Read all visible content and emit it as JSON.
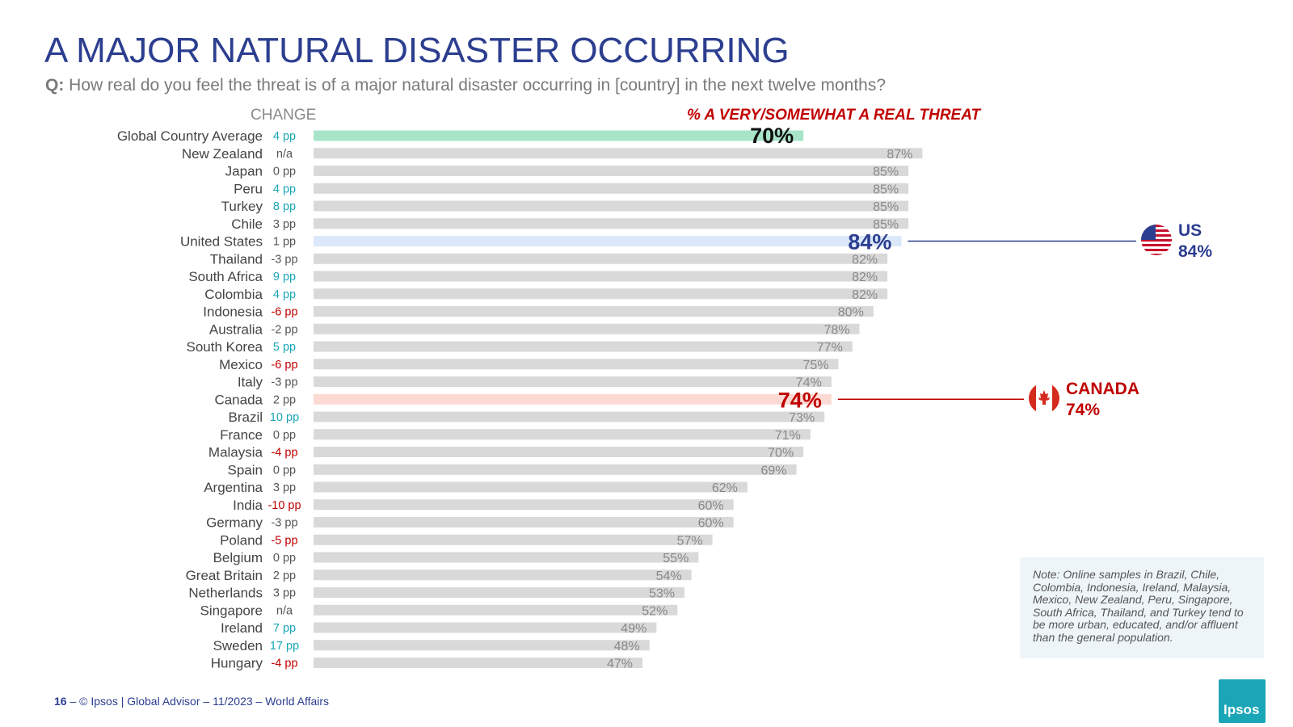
{
  "title": "A MAJOR NATURAL DISASTER OCCURRING",
  "question_prefix": "Q:",
  "question": "How real do you feel the threat is of a major natural disaster occurring in [country] in the next twelve months?",
  "change_header": "CHANGE",
  "metric_header": "% A VERY/SOMEWHAT A REAL THREAT",
  "colors": {
    "bar_default": "#d9d9d9",
    "bar_global": "#a8e4c8",
    "bar_us": "#dbe8fa",
    "bar_canada": "#fcdad4",
    "change_positive": "#1aa6b7",
    "change_negative": "#c00000",
    "change_neutral": "#555555",
    "us_blue": "#2c3e8f",
    "canada_red": "#c00000"
  },
  "chart_data": {
    "type": "bar",
    "orientation": "horizontal",
    "title": "A MAJOR NATURAL DISASTER OCCURRING",
    "xlabel": "% A VERY/SOMEWHAT A REAL THREAT",
    "xlim": [
      0,
      100
    ],
    "categories": [
      "Global Country Average",
      "New Zealand",
      "Japan",
      "Peru",
      "Turkey",
      "Chile",
      "United States",
      "Thailand",
      "South Africa",
      "Colombia",
      "Indonesia",
      "Australia",
      "South Korea",
      "Mexico",
      "Italy",
      "Canada",
      "Brazil",
      "France",
      "Malaysia",
      "Spain",
      "Argentina",
      "India",
      "Germany",
      "Poland",
      "Belgium",
      "Great Britain",
      "Netherlands",
      "Singapore",
      "Ireland",
      "Sweden",
      "Hungary"
    ],
    "values": [
      70,
      87,
      85,
      85,
      85,
      85,
      84,
      82,
      82,
      82,
      80,
      78,
      77,
      75,
      74,
      74,
      73,
      71,
      70,
      69,
      62,
      60,
      60,
      57,
      55,
      54,
      53,
      52,
      49,
      48,
      47
    ],
    "changes": [
      "4 pp",
      "n/a",
      "0 pp",
      "4 pp",
      "8 pp",
      "3 pp",
      "1 pp",
      "-3 pp",
      "9 pp",
      "4 pp",
      "-6 pp",
      "-2 pp",
      "5 pp",
      "-6 pp",
      "-3 pp",
      "2 pp",
      "10 pp",
      "0 pp",
      "-4 pp",
      "0 pp",
      "3 pp",
      "-10 pp",
      "-3 pp",
      "-5 pp",
      "0 pp",
      "2 pp",
      "3 pp",
      "n/a",
      "7 pp",
      "17 pp",
      "-4 pp"
    ],
    "change_tone": [
      "pos",
      "na",
      "neu",
      "pos",
      "pos",
      "neu",
      "neu",
      "neu",
      "pos",
      "pos",
      "neg",
      "neu",
      "pos",
      "neg",
      "neu",
      "neu",
      "pos",
      "neu",
      "neg",
      "neu",
      "neu",
      "neg",
      "neu",
      "neg",
      "neu",
      "neu",
      "neu",
      "na",
      "pos",
      "pos",
      "neg"
    ],
    "highlight": {
      "global": 0,
      "us": 6,
      "canada": 15
    }
  },
  "callouts": {
    "us": {
      "label": "US",
      "value": "84%"
    },
    "canada": {
      "label": "CANADA",
      "value": "74%"
    }
  },
  "note": "Note: Online samples in Brazil, Chile, Colombia, Indonesia, Ireland, Malaysia, Mexico, New Zealand, Peru, Singapore, South Africa, Thailand, and Turkey tend to be more urban, educated, and/or affluent than the general population.",
  "footer": {
    "page": "16",
    "text": "© Ipsos | Global Advisor – 11/2023 – World Affairs"
  },
  "logo_text": "Ipsos"
}
